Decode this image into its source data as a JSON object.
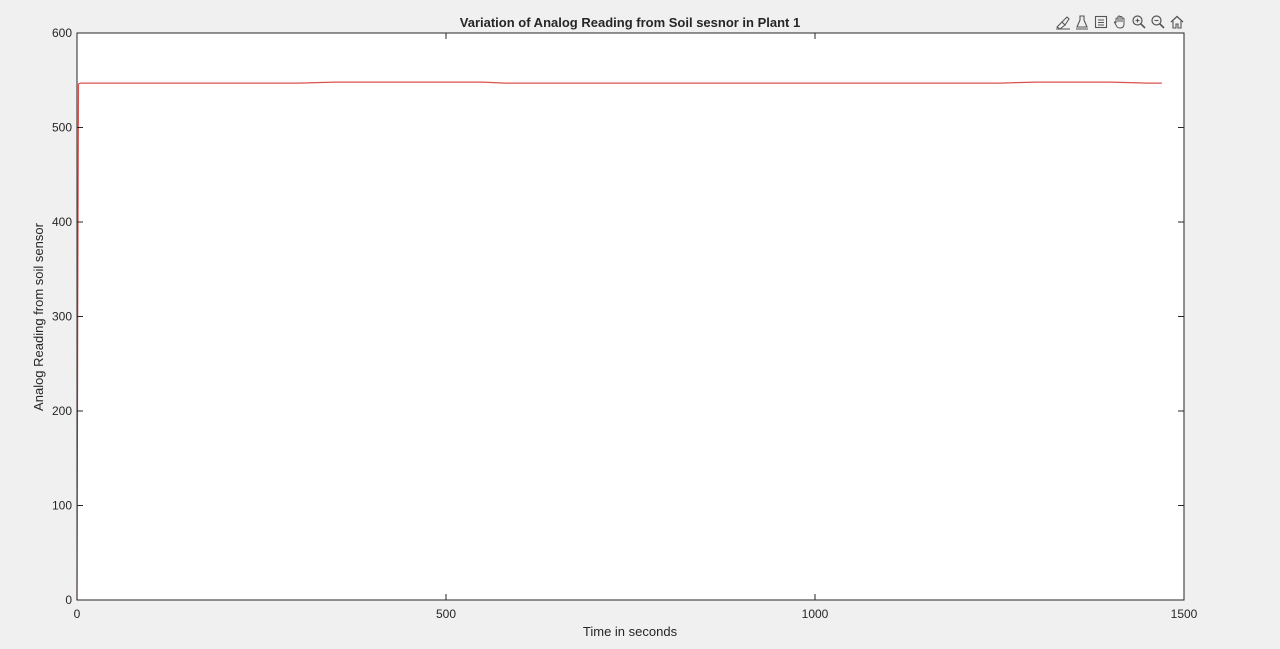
{
  "window": {
    "background": "#f0f0f0"
  },
  "toolbar": {
    "buttons": [
      {
        "name": "brush-icon",
        "tooltip": ""
      },
      {
        "name": "data-tips-icon",
        "tooltip": ""
      },
      {
        "name": "export-icon",
        "tooltip": ""
      },
      {
        "name": "pan-hand-icon",
        "tooltip": ""
      },
      {
        "name": "zoom-in-icon",
        "tooltip": ""
      },
      {
        "name": "zoom-out-icon",
        "tooltip": ""
      },
      {
        "name": "home-restore-view-icon",
        "tooltip": ""
      }
    ]
  },
  "chart_data": {
    "type": "line",
    "title": "Variation of Analog Reading from Soil sesnor in Plant 1",
    "xlabel": "Time in seconds",
    "ylabel": "Analog Reading from soil sensor",
    "xlim": [
      0,
      1500
    ],
    "ylim": [
      0,
      600
    ],
    "xticks": [
      0,
      500,
      1000,
      1500
    ],
    "yticks": [
      0,
      100,
      200,
      300,
      400,
      500,
      600
    ],
    "grid": false,
    "legend": "none",
    "line_color": "#d9534f",
    "axes_background": "#ffffff",
    "series": [
      {
        "x": [
          0,
          1,
          2,
          5,
          50,
          100,
          150,
          200,
          250,
          300,
          350,
          400,
          450,
          500,
          550,
          580,
          600,
          650,
          700,
          750,
          800,
          850,
          900,
          950,
          1000,
          1050,
          1100,
          1150,
          1200,
          1250,
          1300,
          1350,
          1400,
          1450,
          1470
        ],
        "y": [
          0,
          300,
          546,
          547,
          547,
          547,
          547,
          547,
          547,
          547,
          548,
          548,
          548,
          548,
          548,
          547,
          547,
          547,
          547,
          547,
          547,
          547,
          547,
          547,
          547,
          547,
          547,
          547,
          547,
          547,
          548,
          548,
          548,
          547,
          547
        ]
      }
    ]
  }
}
